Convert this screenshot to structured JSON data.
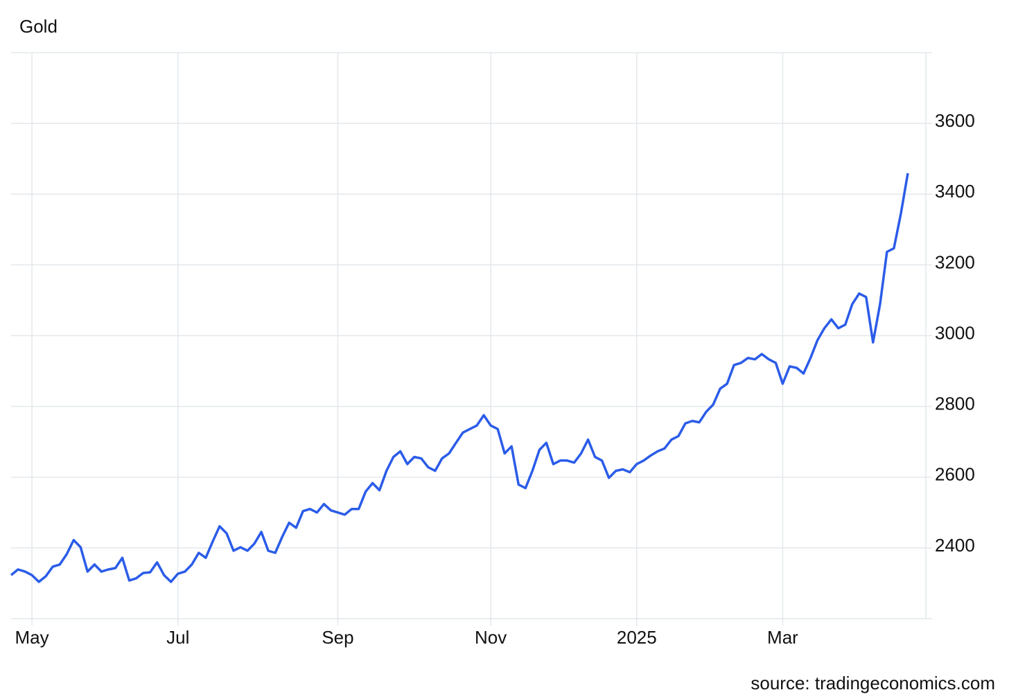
{
  "chart_data": {
    "type": "line",
    "title": "Gold",
    "source": "source: tradingeconomics.com",
    "color": "#2b5ce8",
    "categories": [
      null,
      null,
      null,
      "May",
      null,
      null,
      null,
      null,
      null,
      null,
      null,
      null,
      null,
      null,
      null,
      null,
      null,
      null,
      null,
      null,
      null,
      null,
      null,
      null,
      "Jul",
      null,
      null,
      null,
      null,
      null,
      null,
      null,
      null,
      null,
      null,
      null,
      null,
      null,
      null,
      null,
      null,
      null,
      null,
      null,
      null,
      null,
      null,
      "Sep",
      null,
      null,
      null,
      null,
      null,
      null,
      null,
      null,
      null,
      null,
      null,
      null,
      null,
      null,
      null,
      null,
      null,
      null,
      null,
      null,
      null,
      "Nov",
      null,
      null,
      null,
      null,
      null,
      null,
      null,
      null,
      null,
      null,
      null,
      null,
      null,
      null,
      null,
      null,
      null,
      null,
      null,
      null,
      "2025",
      null,
      null,
      null,
      null,
      null,
      null,
      null,
      null,
      null,
      null,
      null,
      null,
      null,
      null,
      null,
      null,
      null,
      null,
      null,
      null,
      "Mar",
      null,
      null,
      null,
      null,
      null,
      null,
      null,
      null,
      null,
      null,
      null,
      null,
      null,
      null,
      null,
      null,
      null,
      null
    ],
    "values": [
      2323,
      2339,
      2333,
      2323,
      2304,
      2320,
      2347,
      2353,
      2382,
      2422,
      2402,
      2333,
      2353,
      2333,
      2339,
      2343,
      2372,
      2308,
      2314,
      2329,
      2331,
      2359,
      2323,
      2304,
      2327,
      2333,
      2353,
      2386,
      2372,
      2418,
      2461,
      2441,
      2392,
      2402,
      2392,
      2412,
      2445,
      2392,
      2386,
      2431,
      2471,
      2457,
      2504,
      2510,
      2500,
      2524,
      2506,
      2500,
      2494,
      2510,
      2510,
      2559,
      2583,
      2563,
      2618,
      2657,
      2673,
      2637,
      2657,
      2653,
      2628,
      2618,
      2653,
      2667,
      2697,
      2726,
      2736,
      2746,
      2775,
      2746,
      2736,
      2667,
      2687,
      2579,
      2569,
      2618,
      2677,
      2697,
      2637,
      2647,
      2647,
      2641,
      2667,
      2706,
      2657,
      2647,
      2598,
      2618,
      2622,
      2614,
      2637,
      2647,
      2661,
      2673,
      2681,
      2706,
      2716,
      2752,
      2759,
      2755,
      2785,
      2805,
      2850,
      2864,
      2917,
      2923,
      2937,
      2933,
      2948,
      2933,
      2923,
      2864,
      2913,
      2909,
      2893,
      2937,
      2987,
      3021,
      3046,
      3021,
      3031,
      3089,
      3119,
      3109,
      2981,
      3089,
      3237,
      3247,
      3345,
      3459
    ],
    "ylim": [
      2200,
      3800
    ],
    "yticks": [
      2400,
      2600,
      2800,
      3000,
      3200,
      3400,
      3600
    ],
    "grid": true
  }
}
